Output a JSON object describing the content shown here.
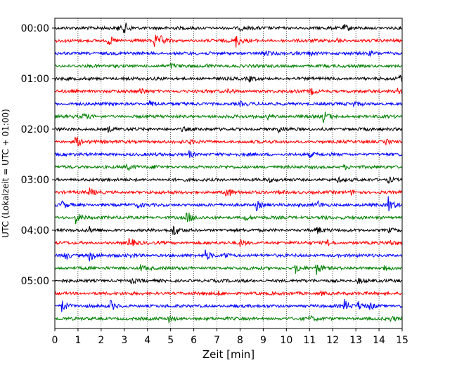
{
  "chart_data": {
    "type": "line",
    "title": "",
    "xlabel": "Zeit  [min]",
    "ylabel": "UTC (Lokalzeit = UTC + 01:00)",
    "xlim": [
      0,
      15
    ],
    "x_ticks": [
      0,
      1,
      2,
      3,
      4,
      5,
      6,
      7,
      8,
      9,
      10,
      11,
      12,
      13,
      14,
      15
    ],
    "y_tick_labels": [
      "00:00",
      "01:00",
      "02:00",
      "03:00",
      "04:00",
      "05:00"
    ],
    "y_tick_rows": [
      0,
      4,
      8,
      12,
      16,
      20
    ],
    "grid": "vertical-dotted",
    "trace_minutes": 15,
    "row_colors": [
      "#000000",
      "#ff0000",
      "#0000ff",
      "#008000"
    ],
    "series": [
      {
        "start": "00:00",
        "events": [
          [
            3.0,
            0.9
          ],
          [
            2.7,
            0.4
          ],
          [
            12.5,
            0.5
          ],
          [
            8.0,
            0.3
          ]
        ]
      },
      {
        "start": "00:15",
        "events": [
          [
            2.3,
            0.9
          ],
          [
            4.3,
            1.0
          ],
          [
            7.8,
            1.1
          ],
          [
            4.6,
            0.5
          ],
          [
            12.2,
            0.3
          ]
        ]
      },
      {
        "start": "00:30",
        "events": [
          [
            9.0,
            0.4
          ],
          [
            11.0,
            0.3
          ],
          [
            13.5,
            0.3
          ]
        ]
      },
      {
        "start": "00:45",
        "events": [
          [
            5.0,
            0.3
          ],
          [
            6.5,
            0.3
          ]
        ]
      },
      {
        "start": "01:00",
        "events": [
          [
            14.9,
            0.9
          ],
          [
            8.4,
            0.4
          ],
          [
            3.0,
            0.3
          ]
        ]
      },
      {
        "start": "01:15",
        "events": [
          [
            3.7,
            0.5
          ],
          [
            7.5,
            0.4
          ],
          [
            11.0,
            0.6
          ],
          [
            14.8,
            0.4
          ]
        ]
      },
      {
        "start": "01:30",
        "events": [
          [
            4.1,
            0.5
          ],
          [
            8.0,
            0.3
          ],
          [
            12.9,
            0.3
          ]
        ]
      },
      {
        "start": "01:45",
        "events": [
          [
            1.2,
            0.5
          ],
          [
            11.6,
            0.9
          ],
          [
            9.2,
            0.3
          ]
        ]
      },
      {
        "start": "02:00",
        "events": [
          [
            9.6,
            0.6
          ],
          [
            2.3,
            0.4
          ],
          [
            5.5,
            0.3
          ]
        ]
      },
      {
        "start": "02:15",
        "events": [
          [
            0.9,
            0.9
          ],
          [
            5.8,
            0.3
          ],
          [
            14.3,
            0.4
          ]
        ]
      },
      {
        "start": "02:30",
        "events": [
          [
            5.8,
            0.5
          ],
          [
            11.0,
            0.3
          ]
        ]
      },
      {
        "start": "02:45",
        "events": [
          [
            3.1,
            0.5
          ],
          [
            4.3,
            0.3
          ],
          [
            12.5,
            0.3
          ]
        ]
      },
      {
        "start": "03:00",
        "events": [
          [
            14.4,
            0.5
          ],
          [
            9.2,
            0.3
          ],
          [
            12.2,
            0.3
          ]
        ]
      },
      {
        "start": "03:15",
        "events": [
          [
            1.5,
            0.6
          ],
          [
            7.4,
            0.9
          ],
          [
            9.7,
            0.3
          ],
          [
            12.8,
            0.3
          ]
        ]
      },
      {
        "start": "03:30",
        "events": [
          [
            0.3,
            0.6
          ],
          [
            8.7,
            0.8
          ],
          [
            11.3,
            0.7
          ],
          [
            14.4,
            1.2
          ],
          [
            3.6,
            0.3
          ]
        ]
      },
      {
        "start": "03:45",
        "events": [
          [
            0.9,
            0.9
          ],
          [
            5.7,
            1.0
          ],
          [
            8.2,
            0.4
          ],
          [
            11.5,
            0.4
          ]
        ]
      },
      {
        "start": "04:00",
        "events": [
          [
            5.1,
            1.0
          ],
          [
            1.5,
            0.4
          ],
          [
            11.3,
            0.6
          ],
          [
            14.4,
            0.3
          ]
        ]
      },
      {
        "start": "04:15",
        "events": [
          [
            3.2,
            0.8
          ],
          [
            8.0,
            0.5
          ],
          [
            11.8,
            0.5
          ],
          [
            14.5,
            0.3
          ]
        ]
      },
      {
        "start": "04:30",
        "events": [
          [
            0.4,
            0.8
          ],
          [
            1.5,
            0.9
          ],
          [
            6.5,
            0.8
          ],
          [
            7.3,
            0.6
          ],
          [
            3.3,
            0.3
          ]
        ]
      },
      {
        "start": "04:45",
        "events": [
          [
            3.7,
            0.5
          ],
          [
            10.4,
            0.8
          ],
          [
            11.3,
            0.9
          ],
          [
            14.2,
            0.5
          ]
        ]
      },
      {
        "start": "05:00",
        "events": [
          [
            13.1,
            0.4
          ],
          [
            3.3,
            0.3
          ]
        ]
      },
      {
        "start": "05:15",
        "events": [
          [
            7.0,
            0.3
          ],
          [
            11.5,
            0.3
          ]
        ]
      },
      {
        "start": "05:30",
        "events": [
          [
            0.3,
            0.9
          ],
          [
            2.4,
            0.8
          ],
          [
            12.5,
            0.9
          ],
          [
            13.1,
            0.7
          ],
          [
            13.6,
            0.6
          ]
        ]
      },
      {
        "start": "05:45",
        "events": [
          [
            4.9,
            0.5
          ],
          [
            11.0,
            0.4
          ],
          [
            14.5,
            0.3
          ]
        ]
      }
    ]
  }
}
